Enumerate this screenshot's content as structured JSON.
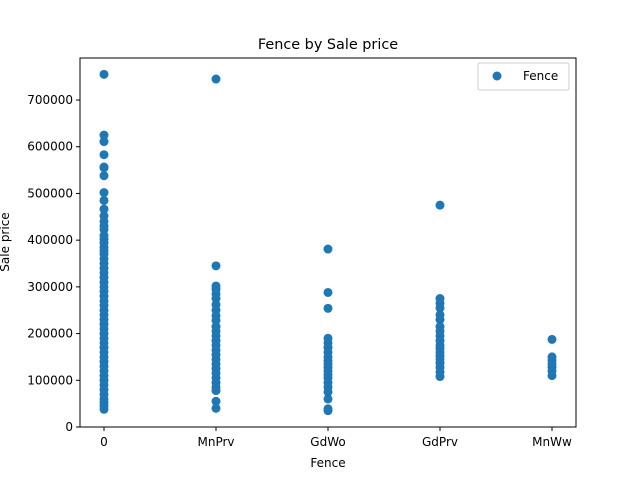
{
  "chart_data": {
    "type": "scatter",
    "title": "Fence by Sale price",
    "xlabel": "Fence",
    "ylabel": "Sale price",
    "categories": [
      "0",
      "MnPrv",
      "GdWo",
      "GdPrv",
      "MnWw"
    ],
    "y_ticks": [
      "0",
      "100000",
      "200000",
      "300000",
      "400000",
      "500000",
      "600000",
      "700000"
    ],
    "ylim": [
      0,
      790000
    ],
    "grid": false,
    "legend": {
      "placement": "top-right",
      "entries": [
        "Fence"
      ]
    },
    "series": [
      {
        "name": "Fence",
        "color": "#1f77b4",
        "points": [
          {
            "x": "0",
            "y": 755000
          },
          {
            "x": "0",
            "y": 625000
          },
          {
            "x": "0",
            "y": 611000
          },
          {
            "x": "0",
            "y": 582933
          },
          {
            "x": "0",
            "y": 556581
          },
          {
            "x": "0",
            "y": 555000
          },
          {
            "x": "0",
            "y": 538000
          },
          {
            "x": "0",
            "y": 501837
          },
          {
            "x": "0",
            "y": 485000
          },
          {
            "x": "0",
            "y": 466500
          },
          {
            "x": "0",
            "y": 451950
          },
          {
            "x": "0",
            "y": 440000
          },
          {
            "x": "0",
            "y": 430000
          },
          {
            "x": "0",
            "y": 423000
          },
          {
            "x": "0",
            "y": 410000
          },
          {
            "x": "0",
            "y": 402000
          },
          {
            "x": "0",
            "y": 394617
          },
          {
            "x": "0",
            "y": 385000
          },
          {
            "x": "0",
            "y": 377500
          },
          {
            "x": "0",
            "y": 370878
          },
          {
            "x": "0",
            "y": 360000
          },
          {
            "x": "0",
            "y": 350000
          },
          {
            "x": "0",
            "y": 340000
          },
          {
            "x": "0",
            "y": 330000
          },
          {
            "x": "0",
            "y": 320000
          },
          {
            "x": "0",
            "y": 310000
          },
          {
            "x": "0",
            "y": 300000
          },
          {
            "x": "0",
            "y": 290000
          },
          {
            "x": "0",
            "y": 280000
          },
          {
            "x": "0",
            "y": 270000
          },
          {
            "x": "0",
            "y": 260000
          },
          {
            "x": "0",
            "y": 250000
          },
          {
            "x": "0",
            "y": 240000
          },
          {
            "x": "0",
            "y": 230000
          },
          {
            "x": "0",
            "y": 220000
          },
          {
            "x": "0",
            "y": 210000
          },
          {
            "x": "0",
            "y": 200000
          },
          {
            "x": "0",
            "y": 190000
          },
          {
            "x": "0",
            "y": 180000
          },
          {
            "x": "0",
            "y": 170000
          },
          {
            "x": "0",
            "y": 160000
          },
          {
            "x": "0",
            "y": 150000
          },
          {
            "x": "0",
            "y": 140000
          },
          {
            "x": "0",
            "y": 130000
          },
          {
            "x": "0",
            "y": 120000
          },
          {
            "x": "0",
            "y": 110000
          },
          {
            "x": "0",
            "y": 100000
          },
          {
            "x": "0",
            "y": 90000
          },
          {
            "x": "0",
            "y": 80000
          },
          {
            "x": "0",
            "y": 70000
          },
          {
            "x": "0",
            "y": 60000
          },
          {
            "x": "0",
            "y": 52000
          },
          {
            "x": "0",
            "y": 45000
          },
          {
            "x": "0",
            "y": 37900
          },
          {
            "x": "MnPrv",
            "y": 745000
          },
          {
            "x": "MnPrv",
            "y": 345000
          },
          {
            "x": "MnPrv",
            "y": 302000
          },
          {
            "x": "MnPrv",
            "y": 295000
          },
          {
            "x": "MnPrv",
            "y": 285000
          },
          {
            "x": "MnPrv",
            "y": 275000
          },
          {
            "x": "MnPrv",
            "y": 262000
          },
          {
            "x": "MnPrv",
            "y": 250000
          },
          {
            "x": "MnPrv",
            "y": 238000
          },
          {
            "x": "MnPrv",
            "y": 228000
          },
          {
            "x": "MnPrv",
            "y": 215000
          },
          {
            "x": "MnPrv",
            "y": 205000
          },
          {
            "x": "MnPrv",
            "y": 195000
          },
          {
            "x": "MnPrv",
            "y": 185000
          },
          {
            "x": "MnPrv",
            "y": 175000
          },
          {
            "x": "MnPrv",
            "y": 165000
          },
          {
            "x": "MnPrv",
            "y": 155000
          },
          {
            "x": "MnPrv",
            "y": 145000
          },
          {
            "x": "MnPrv",
            "y": 135000
          },
          {
            "x": "MnPrv",
            "y": 125000
          },
          {
            "x": "MnPrv",
            "y": 115000
          },
          {
            "x": "MnPrv",
            "y": 105000
          },
          {
            "x": "MnPrv",
            "y": 95000
          },
          {
            "x": "MnPrv",
            "y": 85000
          },
          {
            "x": "MnPrv",
            "y": 78000
          },
          {
            "x": "MnPrv",
            "y": 55000
          },
          {
            "x": "MnPrv",
            "y": 40000
          },
          {
            "x": "GdWo",
            "y": 381000
          },
          {
            "x": "GdWo",
            "y": 288000
          },
          {
            "x": "GdWo",
            "y": 254000
          },
          {
            "x": "GdWo",
            "y": 190000
          },
          {
            "x": "GdWo",
            "y": 180000
          },
          {
            "x": "GdWo",
            "y": 170000
          },
          {
            "x": "GdWo",
            "y": 160000
          },
          {
            "x": "GdWo",
            "y": 150000
          },
          {
            "x": "GdWo",
            "y": 142000
          },
          {
            "x": "GdWo",
            "y": 135000
          },
          {
            "x": "GdWo",
            "y": 128000
          },
          {
            "x": "GdWo",
            "y": 120000
          },
          {
            "x": "GdWo",
            "y": 112000
          },
          {
            "x": "GdWo",
            "y": 105000
          },
          {
            "x": "GdWo",
            "y": 95000
          },
          {
            "x": "GdWo",
            "y": 85000
          },
          {
            "x": "GdWo",
            "y": 75000
          },
          {
            "x": "GdWo",
            "y": 60000
          },
          {
            "x": "GdWo",
            "y": 39000
          },
          {
            "x": "GdWo",
            "y": 35000
          },
          {
            "x": "GdPrv",
            "y": 475000
          },
          {
            "x": "GdPrv",
            "y": 275000
          },
          {
            "x": "GdPrv",
            "y": 265000
          },
          {
            "x": "GdPrv",
            "y": 255000
          },
          {
            "x": "GdPrv",
            "y": 240000
          },
          {
            "x": "GdPrv",
            "y": 230000
          },
          {
            "x": "GdPrv",
            "y": 215000
          },
          {
            "x": "GdPrv",
            "y": 205000
          },
          {
            "x": "GdPrv",
            "y": 195000
          },
          {
            "x": "GdPrv",
            "y": 185000
          },
          {
            "x": "GdPrv",
            "y": 175000
          },
          {
            "x": "GdPrv",
            "y": 168000
          },
          {
            "x": "GdPrv",
            "y": 160000
          },
          {
            "x": "GdPrv",
            "y": 152000
          },
          {
            "x": "GdPrv",
            "y": 145000
          },
          {
            "x": "GdPrv",
            "y": 137000
          },
          {
            "x": "GdPrv",
            "y": 128000
          },
          {
            "x": "GdPrv",
            "y": 118000
          },
          {
            "x": "GdPrv",
            "y": 108000
          },
          {
            "x": "MnWw",
            "y": 187500
          },
          {
            "x": "MnWw",
            "y": 150000
          },
          {
            "x": "MnWw",
            "y": 143000
          },
          {
            "x": "MnWw",
            "y": 135000
          },
          {
            "x": "MnWw",
            "y": 128000
          },
          {
            "x": "MnWw",
            "y": 120000
          },
          {
            "x": "MnWw",
            "y": 110000
          }
        ]
      }
    ]
  }
}
